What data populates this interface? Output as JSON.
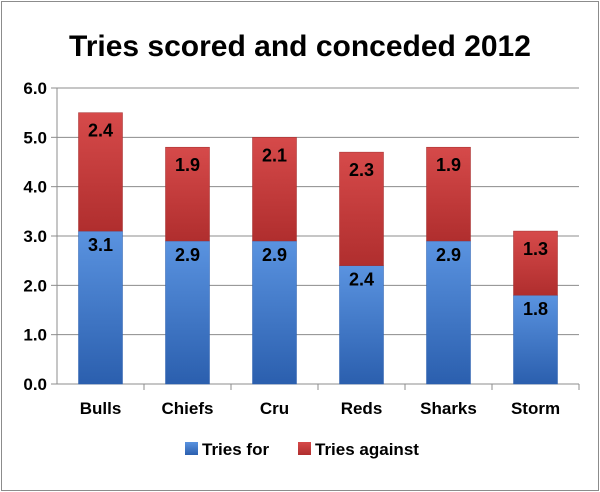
{
  "chart_data": {
    "type": "bar",
    "stacked": true,
    "title": "Tries scored and conceded 2012",
    "xlabel": "",
    "ylabel": "",
    "ylim": [
      0,
      6
    ],
    "yticks": [
      "0.0",
      "1.0",
      "2.0",
      "3.0",
      "4.0",
      "5.0",
      "6.0"
    ],
    "grid": true,
    "legend_position": "bottom",
    "categories": [
      "Bulls",
      "Chiefs",
      "Cru",
      "Reds",
      "Sharks",
      "Storm"
    ],
    "series": [
      {
        "name": "Tries for",
        "color": "#3a74c4",
        "values": [
          3.1,
          2.9,
          2.9,
          2.4,
          2.9,
          1.8
        ],
        "labels": [
          "3.1",
          "2.9",
          "2.9",
          "2.4",
          "2.9",
          "1.8"
        ]
      },
      {
        "name": "Tries against",
        "color": "#c23a3a",
        "values": [
          2.4,
          1.9,
          2.1,
          2.3,
          1.9,
          1.3
        ],
        "labels": [
          "2.4",
          "1.9",
          "2.1",
          "2.3",
          "1.9",
          "1.3"
        ]
      }
    ]
  }
}
